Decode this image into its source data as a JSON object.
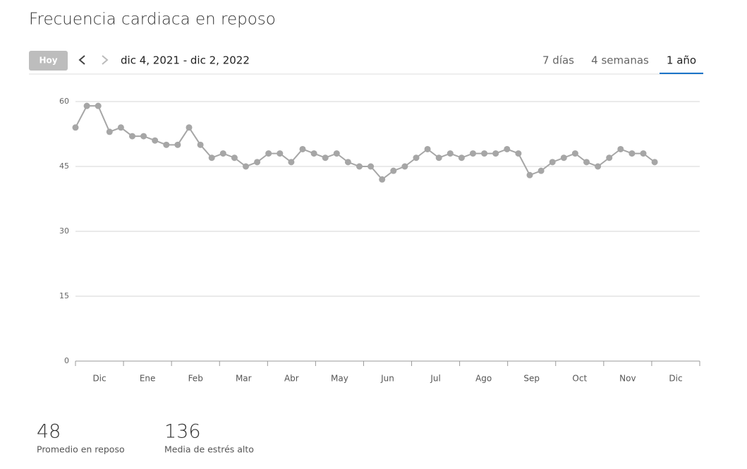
{
  "header": {
    "title": "Frecuencia cardiaca en reposo"
  },
  "toolbar": {
    "today_button": "Hoy",
    "date_range": "dic 4, 2021 - dic 2, 2022",
    "tabs": [
      "7 días",
      "4 semanas",
      "1 año"
    ],
    "active_tab": 2
  },
  "chart_data": {
    "type": "line",
    "color": "#a6a6a6",
    "values": [
      54,
      59,
      59,
      53,
      54,
      52,
      52,
      51,
      50,
      50,
      54,
      50,
      47,
      48,
      47,
      45,
      46,
      48,
      48,
      46,
      49,
      48,
      47,
      48,
      46,
      45,
      45,
      42,
      44,
      45,
      47,
      49,
      47,
      48,
      47,
      48,
      48,
      48,
      49,
      48,
      43,
      44,
      46,
      47,
      48,
      46,
      45,
      47,
      49,
      48,
      48,
      46
    ],
    "month_labels": [
      "Dic",
      "Ene",
      "Feb",
      "Mar",
      "Abr",
      "May",
      "Jun",
      "Jul",
      "Ago",
      "Sep",
      "Oct",
      "Nov",
      "Dic"
    ],
    "ylim": [
      0,
      60
    ],
    "yticks": [
      0,
      15,
      30,
      45,
      60
    ],
    "grid": true
  },
  "stats": [
    {
      "value": "48",
      "label": "Promedio en reposo"
    },
    {
      "value": "136",
      "label": "Media de estrés alto"
    }
  ]
}
